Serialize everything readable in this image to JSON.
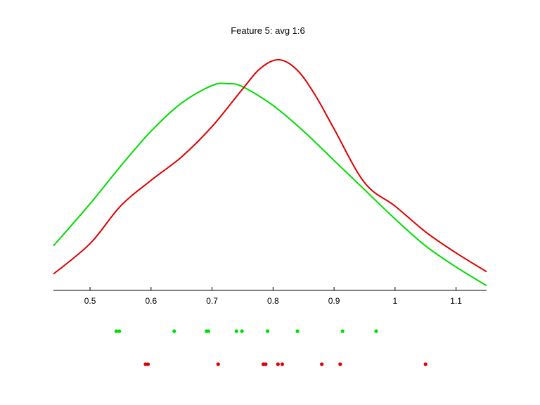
{
  "chart_data": {
    "type": "line",
    "title": "Feature 5: avg 1:6",
    "xlabel": "",
    "ylabel": "",
    "xlim": [
      0.44,
      1.15
    ],
    "ylim": [
      0,
      1.0
    ],
    "grid": false,
    "xticks": [
      0.5,
      0.6,
      0.7,
      0.8,
      0.9,
      1,
      1.1
    ],
    "xtick_labels": [
      "0.5",
      "0.6",
      "0.7",
      "0.8",
      "0.9",
      "1",
      "1.1"
    ],
    "series": [
      {
        "color": "#00dd00",
        "x": [
          0.44,
          0.5,
          0.55,
          0.6,
          0.65,
          0.7,
          0.725,
          0.75,
          0.8,
          0.85,
          0.9,
          0.95,
          1.0,
          1.05,
          1.1,
          1.15
        ],
        "y": [
          0.19,
          0.37,
          0.53,
          0.68,
          0.8,
          0.875,
          0.883,
          0.87,
          0.79,
          0.68,
          0.555,
          0.43,
          0.305,
          0.19,
          0.1,
          0.02
        ]
      },
      {
        "color": "#dd0000",
        "x": [
          0.44,
          0.5,
          0.55,
          0.6,
          0.65,
          0.7,
          0.75,
          0.78,
          0.81,
          0.84,
          0.87,
          0.9,
          0.95,
          1.0,
          1.05,
          1.1,
          1.15
        ],
        "y": [
          0.07,
          0.2,
          0.36,
          0.47,
          0.57,
          0.7,
          0.86,
          0.95,
          0.985,
          0.94,
          0.83,
          0.69,
          0.46,
          0.36,
          0.25,
          0.16,
          0.08
        ]
      }
    ],
    "points": [
      {
        "color": "#00dd00",
        "x": [
          0.543,
          0.548,
          0.638,
          0.691,
          0.694,
          0.74,
          0.749,
          0.791,
          0.84,
          0.914,
          0.969
        ]
      },
      {
        "color": "#dd0000",
        "x": [
          0.591,
          0.595,
          0.71,
          0.784,
          0.788,
          0.808,
          0.815,
          0.88,
          0.91,
          1.05
        ]
      }
    ]
  }
}
